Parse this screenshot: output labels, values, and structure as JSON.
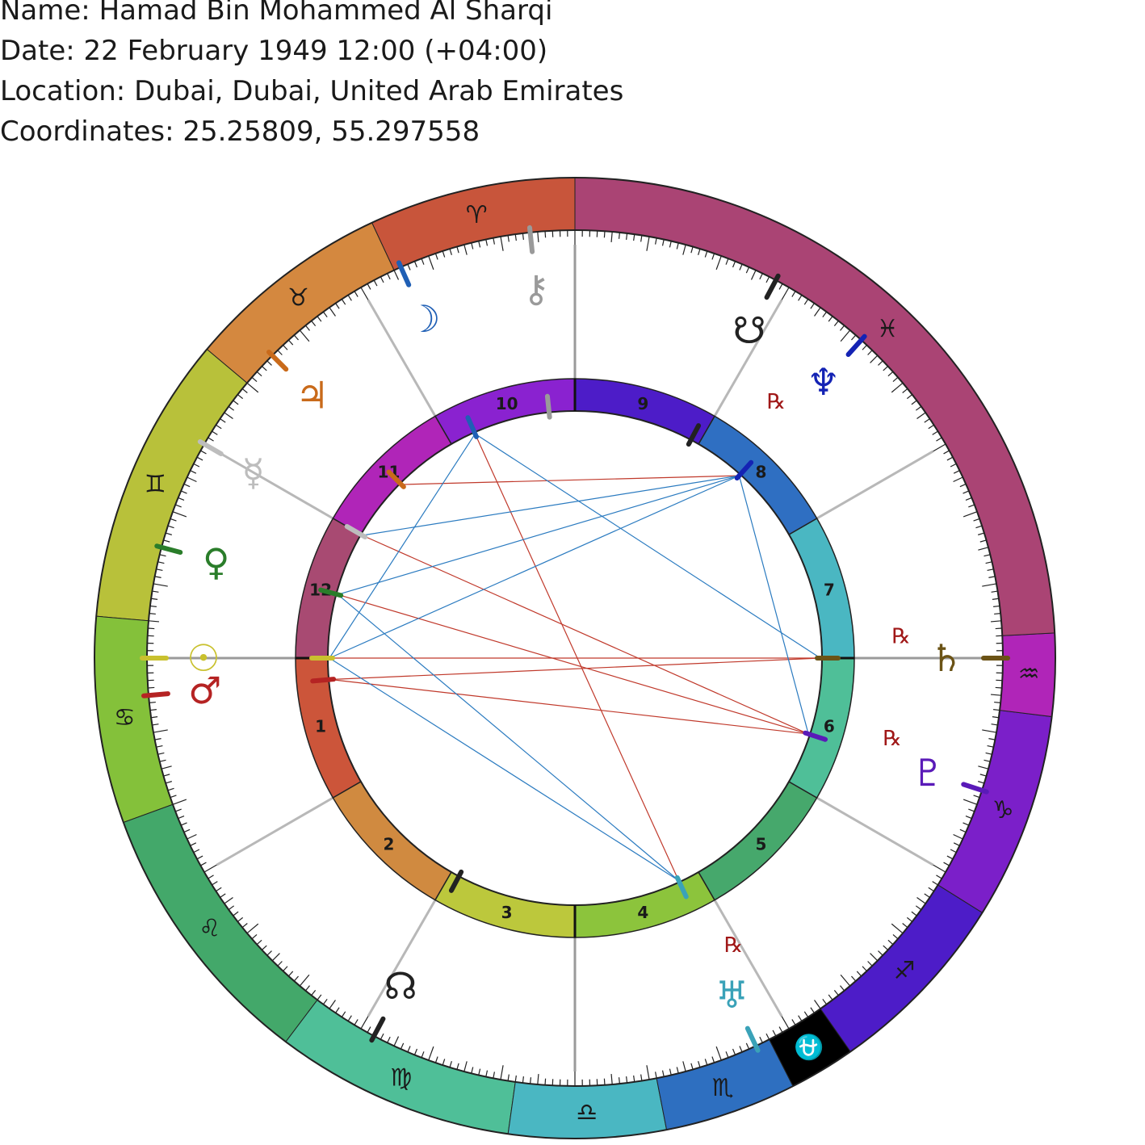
{
  "header": {
    "name": "Name: Hamad Bin Mohammed Al Sharqi",
    "date": "Date: 22 February 1949 12:00 (+04:00)",
    "location": "Location: Dubai, Dubai, United Arab Emirates",
    "coordinates": "Coordinates: 25.25809, 55.297558"
  },
  "chart": {
    "ascendant_deg": 332,
    "signs": [
      {
        "name": "Aries",
        "glyph": "♈",
        "color": "#c8553b"
      },
      {
        "name": "Taurus",
        "glyph": "♉",
        "color": "#d4883f"
      },
      {
        "name": "Gemini",
        "glyph": "♊",
        "color": "#b8c13a"
      },
      {
        "name": "Cancer",
        "glyph": "♋",
        "color": "#84c13a"
      },
      {
        "name": "Leo",
        "glyph": "♌",
        "color": "#43a86a"
      },
      {
        "name": "Virgo",
        "glyph": "♍",
        "color": "#4fbf98"
      },
      {
        "name": "Libra",
        "glyph": "♎",
        "color": "#4ab7c2"
      },
      {
        "name": "Scorpio",
        "glyph": "♏",
        "color": "#2e6fc0"
      },
      {
        "name": "Ophiuchus",
        "glyph": "⛎",
        "color": "#000000"
      },
      {
        "name": "Sagittarius",
        "glyph": "♐",
        "color": "#4d1cc8"
      },
      {
        "name": "Capricorn",
        "glyph": "♑",
        "color": "#7b1fc9"
      },
      {
        "name": "Aquarius",
        "glyph": "♒",
        "color": "#b025b8"
      },
      {
        "name": "Pisces",
        "glyph": "♓",
        "color": "#aa4474"
      }
    ],
    "sign_boundaries": [
      90,
      115,
      140,
      175,
      200,
      233,
      262,
      281,
      297,
      305,
      328,
      353,
      3
    ],
    "houses": [
      {
        "number": "1",
        "color": "#cc553a"
      },
      {
        "number": "2",
        "color": "#d08a40"
      },
      {
        "number": "3",
        "color": "#bcc83c"
      },
      {
        "number": "4",
        "color": "#8cc43c"
      },
      {
        "number": "5",
        "color": "#46a86c"
      },
      {
        "number": "6",
        "color": "#4fbf98"
      },
      {
        "number": "7",
        "color": "#4ab7c2"
      },
      {
        "number": "8",
        "color": "#2f6fc2"
      },
      {
        "number": "9",
        "color": "#4d1cc8"
      },
      {
        "number": "10",
        "color": "#8a22d0"
      },
      {
        "number": "11",
        "color": "#b025b8"
      },
      {
        "number": "12",
        "color": "#a84a72"
      }
    ],
    "house_cusps": [
      0,
      30,
      60,
      90,
      120,
      150,
      180,
      210,
      240,
      270,
      300,
      330
    ],
    "planets": [
      {
        "name": "Sun",
        "glyph": "☉",
        "color": "#c9c12e",
        "deg": 0,
        "rx": false
      },
      {
        "name": "Mars",
        "glyph": "♂",
        "color": "#b52323",
        "deg": -5,
        "rx": false
      },
      {
        "name": "Venus",
        "glyph": "♀",
        "color": "#2a7d2a",
        "deg": 15,
        "rx": false
      },
      {
        "name": "Mercury",
        "glyph": "☿",
        "color": "#bdbdbd",
        "deg": 30,
        "rx": false
      },
      {
        "name": "Jupiter",
        "glyph": "♃",
        "color": "#c96a1a",
        "deg": 45,
        "rx": false
      },
      {
        "name": "Moon",
        "glyph": "☽",
        "color": "#1f5fb5",
        "deg": 66,
        "rx": false
      },
      {
        "name": "Chiron",
        "glyph": "⚷",
        "color": "#9a9a9a",
        "deg": 84,
        "rx": false
      },
      {
        "name": "Node",
        "glyph": "☋",
        "color": "#222222",
        "deg": 118,
        "rx": false
      },
      {
        "name": "Neptune",
        "glyph": "♆",
        "color": "#1423b4",
        "deg": 132,
        "rx": true
      },
      {
        "name": "Saturn",
        "glyph": "♄",
        "color": "#6b5316",
        "deg": 180,
        "rx": true
      },
      {
        "name": "Pluto",
        "glyph": "♇",
        "color": "#5a1ab8",
        "deg": 198,
        "rx": true
      },
      {
        "name": "Uranus",
        "glyph": "♅",
        "color": "#3aa2b8",
        "deg": 245,
        "rx": true
      },
      {
        "name": "North Node",
        "glyph": "☊",
        "color": "#222222",
        "deg": 298,
        "rx": false
      }
    ],
    "rx_label": "℞",
    "aspects": [
      {
        "from": "Sun",
        "to": "Saturn",
        "type": "opposition"
      },
      {
        "from": "Mars",
        "to": "Saturn",
        "type": "opposition"
      },
      {
        "from": "Mars",
        "to": "Pluto",
        "type": "opposition"
      },
      {
        "from": "Venus",
        "to": "Pluto",
        "type": "opposition"
      },
      {
        "from": "Mercury",
        "to": "Pluto",
        "type": "opposition"
      },
      {
        "from": "Jupiter",
        "to": "Neptune",
        "type": "opposition"
      },
      {
        "from": "Moon",
        "to": "Uranus",
        "type": "opposition"
      },
      {
        "from": "Sun",
        "to": "Moon",
        "type": "trine"
      },
      {
        "from": "Sun",
        "to": "Neptune",
        "type": "trine"
      },
      {
        "from": "Sun",
        "to": "Uranus",
        "type": "trine"
      },
      {
        "from": "Venus",
        "to": "Neptune",
        "type": "trine"
      },
      {
        "from": "Venus",
        "to": "Uranus",
        "type": "trine"
      },
      {
        "from": "Mercury",
        "to": "Neptune",
        "type": "trine"
      },
      {
        "from": "Moon",
        "to": "Saturn",
        "type": "trine"
      },
      {
        "from": "Neptune",
        "to": "Pluto",
        "type": "trine"
      }
    ],
    "aspect_colors": {
      "opposition": "#c0392b",
      "trine": "#2b7bc0"
    }
  }
}
